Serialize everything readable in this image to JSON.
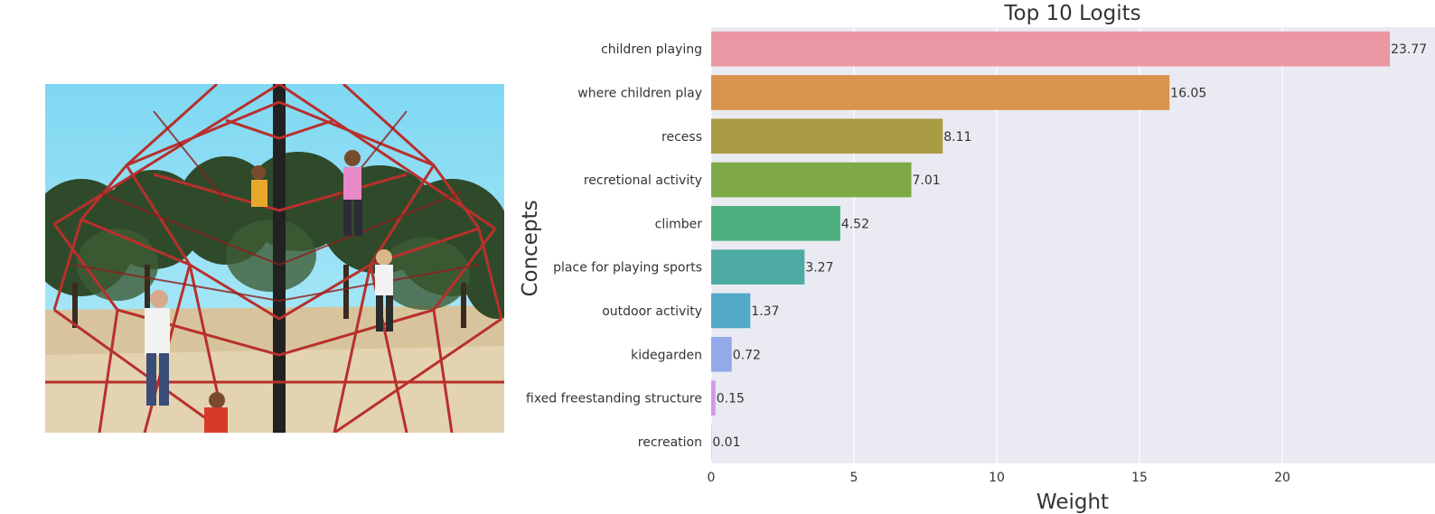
{
  "image": {
    "description_icon": "playground-photo"
  },
  "chart_data": {
    "type": "bar",
    "orientation": "horizontal",
    "title": "Top 10 Logits",
    "xlabel": "Weight",
    "ylabel": "Concepts",
    "xlim": [
      0,
      25
    ],
    "xticks": [
      0,
      5,
      10,
      15,
      20
    ],
    "grid": true,
    "categories": [
      "children playing",
      "where children play",
      "recess",
      "recretional activity",
      "climber",
      "place for playing sports",
      "outdoor activity",
      "kidegarden",
      "fixed freestanding structure",
      "recreation"
    ],
    "values": [
      23.77,
      16.05,
      8.11,
      7.01,
      4.52,
      3.27,
      1.37,
      0.72,
      0.15,
      0.01
    ],
    "value_labels": [
      "23.77",
      "16.05",
      "8.11",
      "7.01",
      "4.52",
      "3.27",
      "1.37",
      "0.72",
      "0.15",
      "0.01"
    ],
    "colors": [
      "#ea96a3",
      "#d8934c",
      "#aa9c44",
      "#7ea946",
      "#4daf7e",
      "#4eaba3",
      "#52a9c9",
      "#93a9e9",
      "#d796e7",
      "#ee90cc"
    ],
    "background": "#eaeaf2"
  }
}
